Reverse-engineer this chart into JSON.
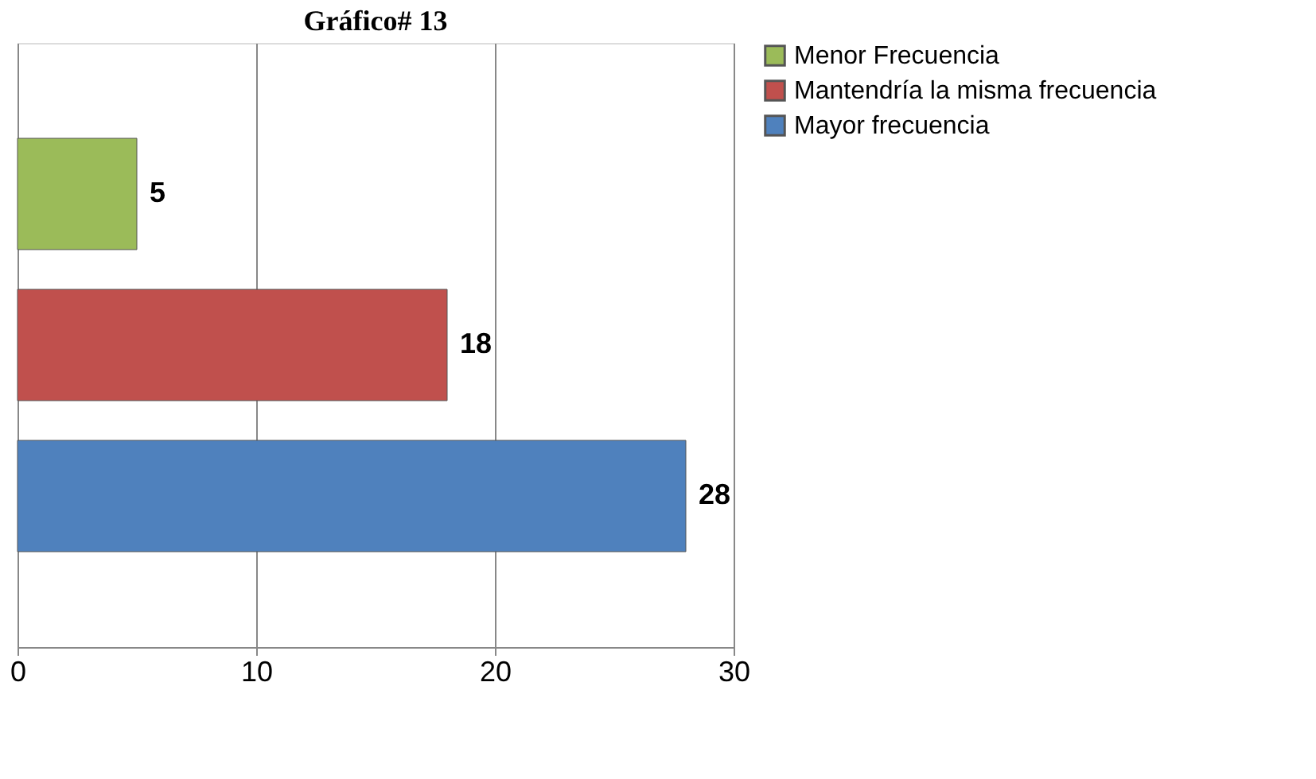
{
  "chart_data": {
    "type": "bar",
    "orientation": "horizontal",
    "title": "Gráfico# 13",
    "categories": [
      null,
      null,
      null
    ],
    "series": [
      {
        "name": "Menor Frecuencia",
        "color": "#9bbb59",
        "values": [
          5,
          null,
          null
        ]
      },
      {
        "name": "Mantendría la misma frecuencia",
        "color": "#c0504d",
        "values": [
          null,
          18,
          null
        ]
      },
      {
        "name": "Mayor frecuencia",
        "color": "#4f81bd",
        "values": [
          null,
          null,
          28
        ]
      }
    ],
    "xlim": [
      0,
      30
    ],
    "xticks": [
      0,
      10,
      20,
      30
    ],
    "grid": "x",
    "legend": "right",
    "data_labels": true
  }
}
